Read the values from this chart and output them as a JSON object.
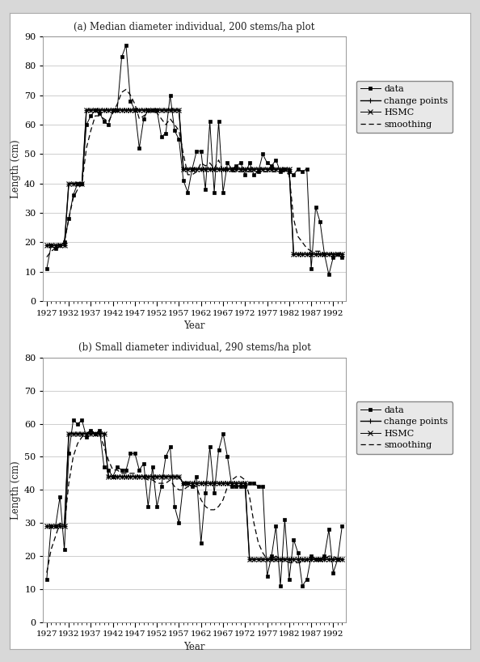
{
  "title_a": "(a) Median diameter individual, 200 stems/ha plot",
  "title_b": "(b) Small diameter individual, 290 stems/ha plot",
  "xlabel": "Year",
  "ylabel": "Length (cm)",
  "years": [
    1927,
    1928,
    1929,
    1930,
    1931,
    1932,
    1933,
    1934,
    1935,
    1936,
    1937,
    1938,
    1939,
    1940,
    1941,
    1942,
    1943,
    1944,
    1945,
    1946,
    1947,
    1948,
    1949,
    1950,
    1951,
    1952,
    1953,
    1954,
    1955,
    1956,
    1957,
    1958,
    1959,
    1960,
    1961,
    1962,
    1963,
    1964,
    1965,
    1966,
    1967,
    1968,
    1969,
    1970,
    1971,
    1972,
    1973,
    1974,
    1975,
    1976,
    1977,
    1978,
    1979,
    1980,
    1981,
    1982,
    1983,
    1984,
    1985,
    1986,
    1987,
    1988,
    1989,
    1990,
    1991,
    1992,
    1993,
    1994
  ],
  "a_data": [
    11,
    19,
    18,
    19,
    20,
    28,
    36,
    40,
    40,
    60,
    63,
    65,
    64,
    61,
    60,
    65,
    65,
    83,
    87,
    68,
    65,
    52,
    62,
    65,
    65,
    65,
    56,
    57,
    70,
    58,
    55,
    41,
    37,
    45,
    51,
    51,
    38,
    61,
    37,
    61,
    37,
    47,
    45,
    46,
    47,
    43,
    47,
    43,
    44,
    50,
    47,
    46,
    48,
    44,
    45,
    44,
    43,
    45,
    44,
    45,
    11,
    32,
    27,
    16,
    9,
    15,
    16,
    15
  ],
  "a_cp": [
    19,
    19,
    19,
    19,
    19,
    40,
    40,
    40,
    40,
    65,
    65,
    65,
    65,
    65,
    65,
    65,
    65,
    65,
    65,
    65,
    65,
    65,
    65,
    65,
    65,
    65,
    65,
    65,
    65,
    65,
    65,
    45,
    45,
    45,
    45,
    45,
    45,
    45,
    45,
    45,
    45,
    45,
    45,
    45,
    45,
    45,
    45,
    45,
    45,
    45,
    45,
    45,
    45,
    45,
    45,
    45,
    16,
    16,
    16,
    16,
    16,
    16,
    16,
    16,
    16,
    16,
    16,
    16
  ],
  "a_hsmc": [
    19,
    19,
    19,
    19,
    19,
    40,
    40,
    40,
    40,
    65,
    65,
    65,
    65,
    65,
    65,
    65,
    65,
    65,
    65,
    65,
    65,
    65,
    65,
    65,
    65,
    65,
    65,
    65,
    65,
    65,
    65,
    45,
    45,
    45,
    45,
    45,
    45,
    45,
    45,
    45,
    45,
    45,
    45,
    45,
    45,
    45,
    45,
    45,
    45,
    45,
    45,
    45,
    45,
    45,
    45,
    45,
    16,
    16,
    16,
    16,
    16,
    16,
    16,
    16,
    16,
    16,
    16,
    16
  ],
  "a_smooth": [
    15,
    17,
    18,
    19,
    20,
    28,
    35,
    38,
    40,
    52,
    58,
    63,
    63,
    62,
    61,
    64,
    67,
    71,
    72,
    70,
    67,
    62,
    63,
    64,
    65,
    64,
    62,
    60,
    62,
    60,
    58,
    50,
    43,
    43,
    44,
    47,
    46,
    47,
    45,
    48,
    44,
    45,
    44,
    44,
    44,
    44,
    44,
    44,
    44,
    44,
    44,
    44,
    44,
    44,
    44,
    43,
    28,
    22,
    20,
    18,
    17,
    17,
    17,
    16,
    16,
    16,
    16,
    16
  ],
  "b_data": [
    13,
    29,
    29,
    38,
    22,
    51,
    61,
    60,
    61,
    56,
    58,
    57,
    58,
    47,
    46,
    44,
    47,
    46,
    46,
    51,
    51,
    46,
    48,
    35,
    47,
    35,
    41,
    50,
    53,
    35,
    30,
    42,
    42,
    41,
    44,
    24,
    39,
    53,
    39,
    52,
    57,
    50,
    41,
    41,
    41,
    41,
    42,
    42,
    41,
    41,
    14,
    20,
    29,
    11,
    31,
    13,
    25,
    21,
    11,
    13,
    20,
    19,
    19,
    20,
    28,
    15,
    19,
    29
  ],
  "b_cp": [
    29,
    29,
    29,
    29,
    29,
    57,
    57,
    57,
    57,
    57,
    57,
    57,
    57,
    57,
    44,
    44,
    44,
    44,
    44,
    44,
    44,
    44,
    44,
    44,
    44,
    44,
    44,
    44,
    44,
    44,
    44,
    42,
    42,
    42,
    42,
    42,
    42,
    42,
    42,
    42,
    42,
    42,
    42,
    42,
    42,
    42,
    19,
    19,
    19,
    19,
    19,
    19,
    19,
    19,
    19,
    19,
    19,
    19,
    19,
    19,
    19,
    19,
    19,
    19,
    19,
    19,
    19,
    19
  ],
  "b_hsmc": [
    29,
    29,
    29,
    29,
    29,
    57,
    57,
    57,
    57,
    57,
    57,
    57,
    57,
    57,
    44,
    44,
    44,
    44,
    44,
    44,
    44,
    44,
    44,
    44,
    44,
    44,
    44,
    44,
    44,
    44,
    44,
    42,
    42,
    42,
    42,
    42,
    42,
    42,
    42,
    42,
    42,
    42,
    42,
    42,
    42,
    42,
    19,
    19,
    19,
    19,
    19,
    19,
    19,
    19,
    19,
    19,
    19,
    19,
    19,
    19,
    19,
    19,
    19,
    19,
    19,
    19,
    19,
    19
  ],
  "b_smooth": [
    15,
    22,
    26,
    30,
    29,
    42,
    50,
    54,
    56,
    57,
    58,
    57,
    57,
    53,
    49,
    46,
    46,
    45,
    45,
    45,
    45,
    44,
    44,
    43,
    43,
    42,
    42,
    42,
    43,
    41,
    40,
    40,
    41,
    41,
    41,
    37,
    35,
    34,
    34,
    35,
    37,
    41,
    43,
    44,
    44,
    43,
    38,
    30,
    24,
    21,
    19,
    19,
    20,
    19,
    19,
    18,
    18,
    18,
    18,
    19,
    19,
    19,
    19,
    19,
    20,
    20,
    19,
    19
  ],
  "xtick_labels": [
    "1927",
    "1932",
    "1937",
    "1942",
    "1947",
    "1952",
    "1957",
    "1962",
    "1967",
    "1972",
    "1977",
    "1982",
    "1987",
    "1992"
  ],
  "xtick_years": [
    1927,
    1932,
    1937,
    1942,
    1947,
    1952,
    1957,
    1962,
    1967,
    1972,
    1977,
    1982,
    1987,
    1992
  ],
  "line_color": "#000000",
  "grid_color": "#bbbbbb",
  "fig_bg": "#d8d8d8",
  "plot_bg": "#ffffff",
  "legend_bg": "#e8e8e8"
}
